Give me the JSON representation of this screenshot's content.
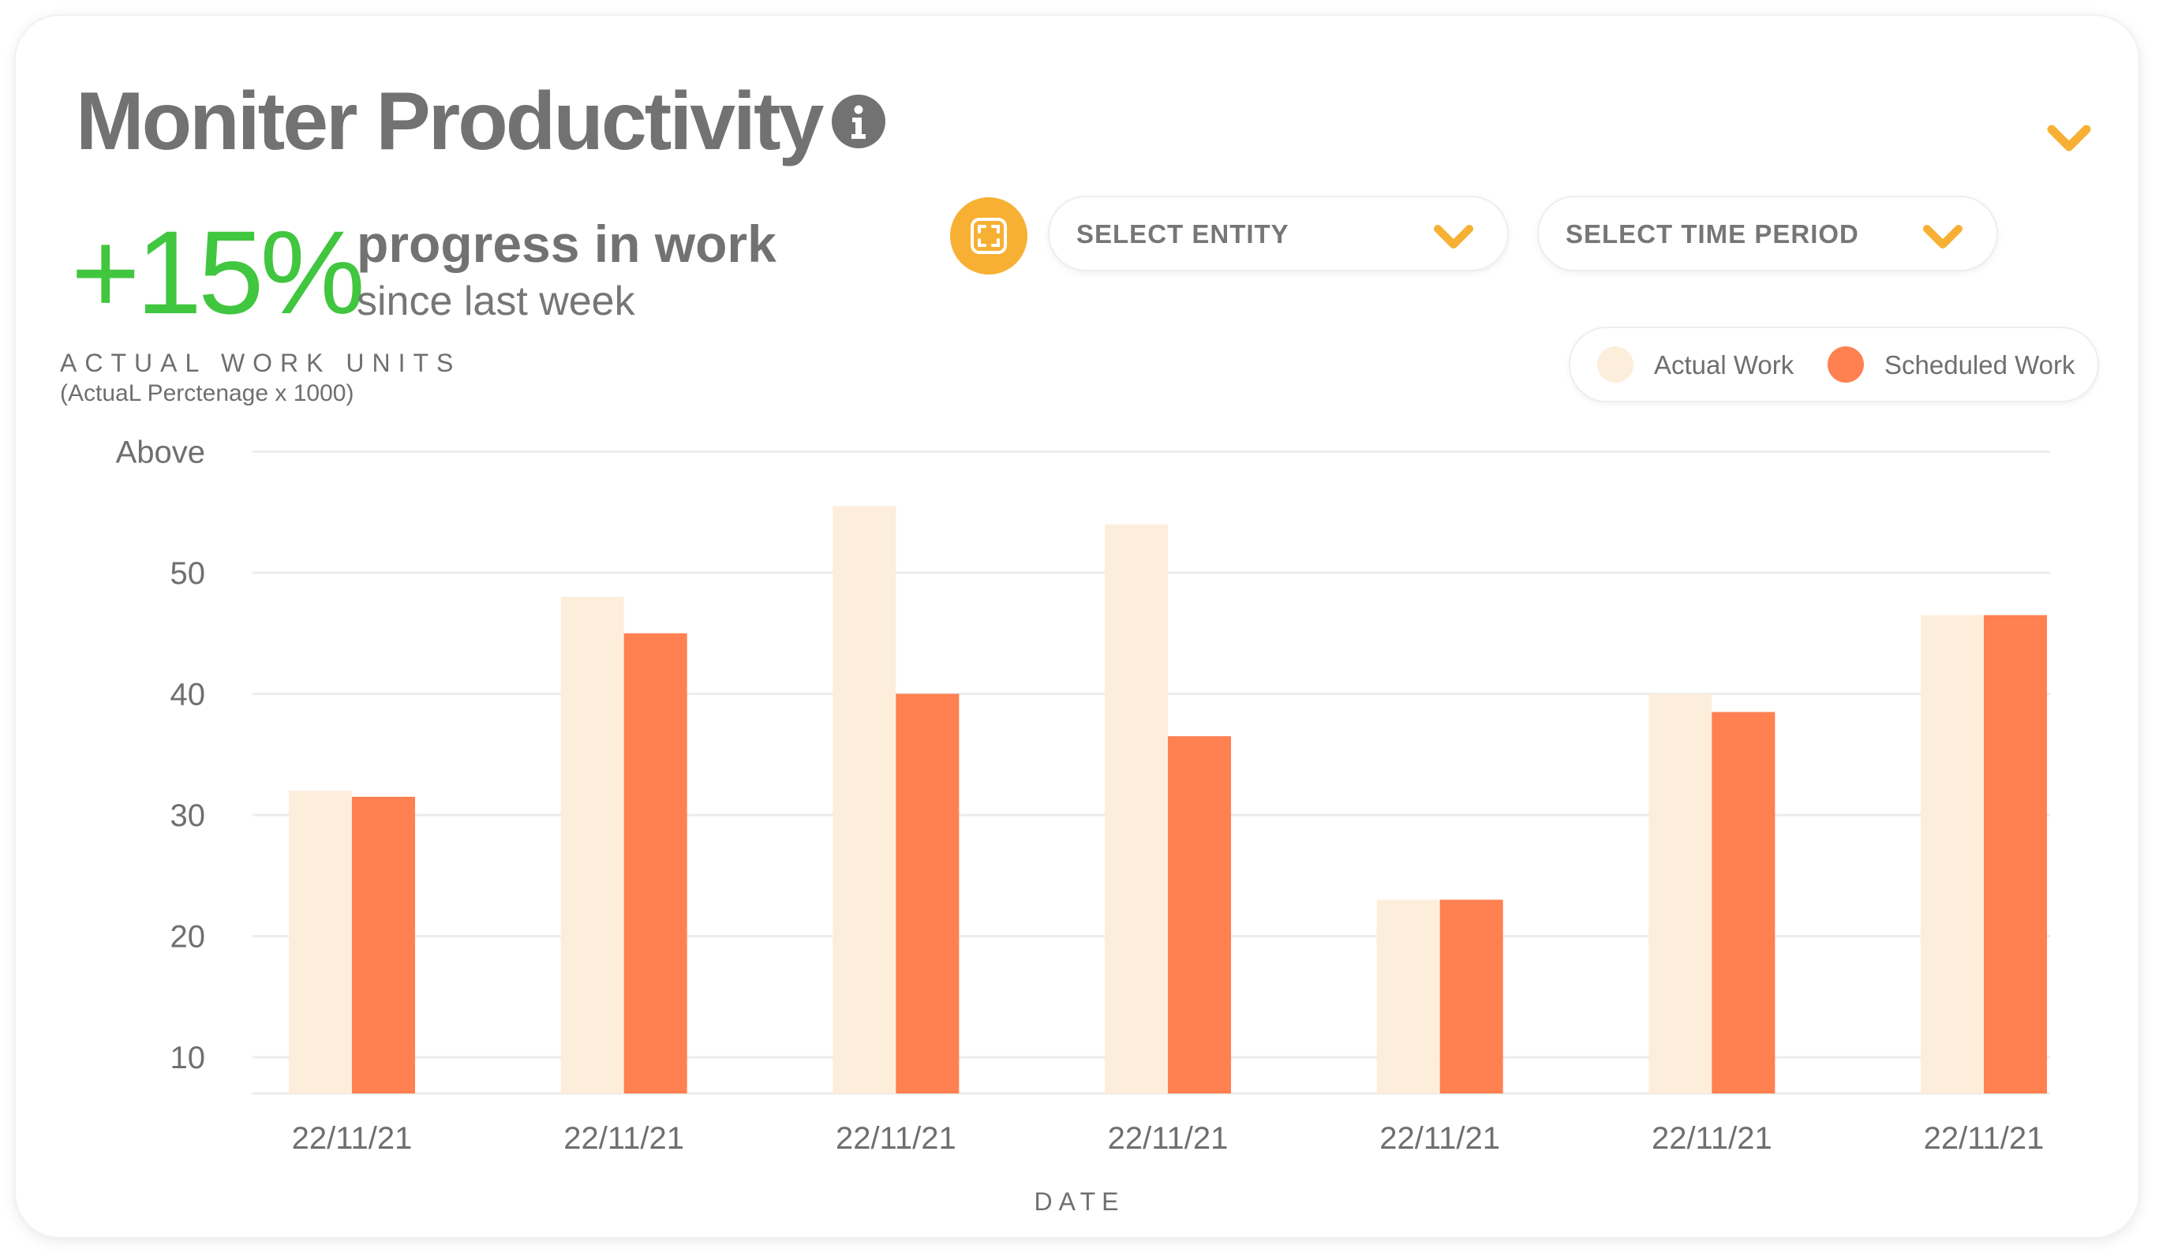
{
  "header": {
    "title": "Moniter Productivity",
    "info_icon": "info-icon",
    "collapse_icon": "chevron-down-icon"
  },
  "summary": {
    "change": "+15%",
    "headline": "progress in work",
    "subline": "since last week"
  },
  "controls": {
    "expand_icon": "fullscreen-icon",
    "entity_select": "SELECT ENTITY",
    "time_select": "SELECT TIME PERIOD"
  },
  "colors": {
    "accent": "#f7b034",
    "positive": "#41c63f",
    "actual": "#fdeedc",
    "scheduled": "#ff8050",
    "text": "#727272"
  },
  "chart_data": {
    "type": "bar",
    "ylabel": "ACTUAL WORK UNITS",
    "ylabel_sub": "(ActuaL Perctenage x 1000)",
    "xlabel": "DATE",
    "categories": [
      "22/11/21",
      "22/11/21",
      "22/11/21",
      "22/11/21",
      "22/11/21",
      "22/11/21",
      "22/11/21"
    ],
    "series": [
      {
        "name": "Actual Work",
        "color": "#fdeedc",
        "values": [
          32,
          48,
          55.5,
          54,
          23,
          40,
          46.5
        ]
      },
      {
        "name": "Scheduled Work",
        "color": "#ff8050",
        "values": [
          31.5,
          45,
          40,
          36.5,
          23,
          38.5,
          46.5
        ]
      }
    ],
    "yticks": [
      {
        "value": 10,
        "label": "10"
      },
      {
        "value": 20,
        "label": "20"
      },
      {
        "value": 30,
        "label": "30"
      },
      {
        "value": 40,
        "label": "40"
      },
      {
        "value": 50,
        "label": "50"
      },
      {
        "value": 60,
        "label": "Above"
      }
    ],
    "ylim": [
      7,
      60
    ],
    "grid": true,
    "legend": "top-right"
  }
}
